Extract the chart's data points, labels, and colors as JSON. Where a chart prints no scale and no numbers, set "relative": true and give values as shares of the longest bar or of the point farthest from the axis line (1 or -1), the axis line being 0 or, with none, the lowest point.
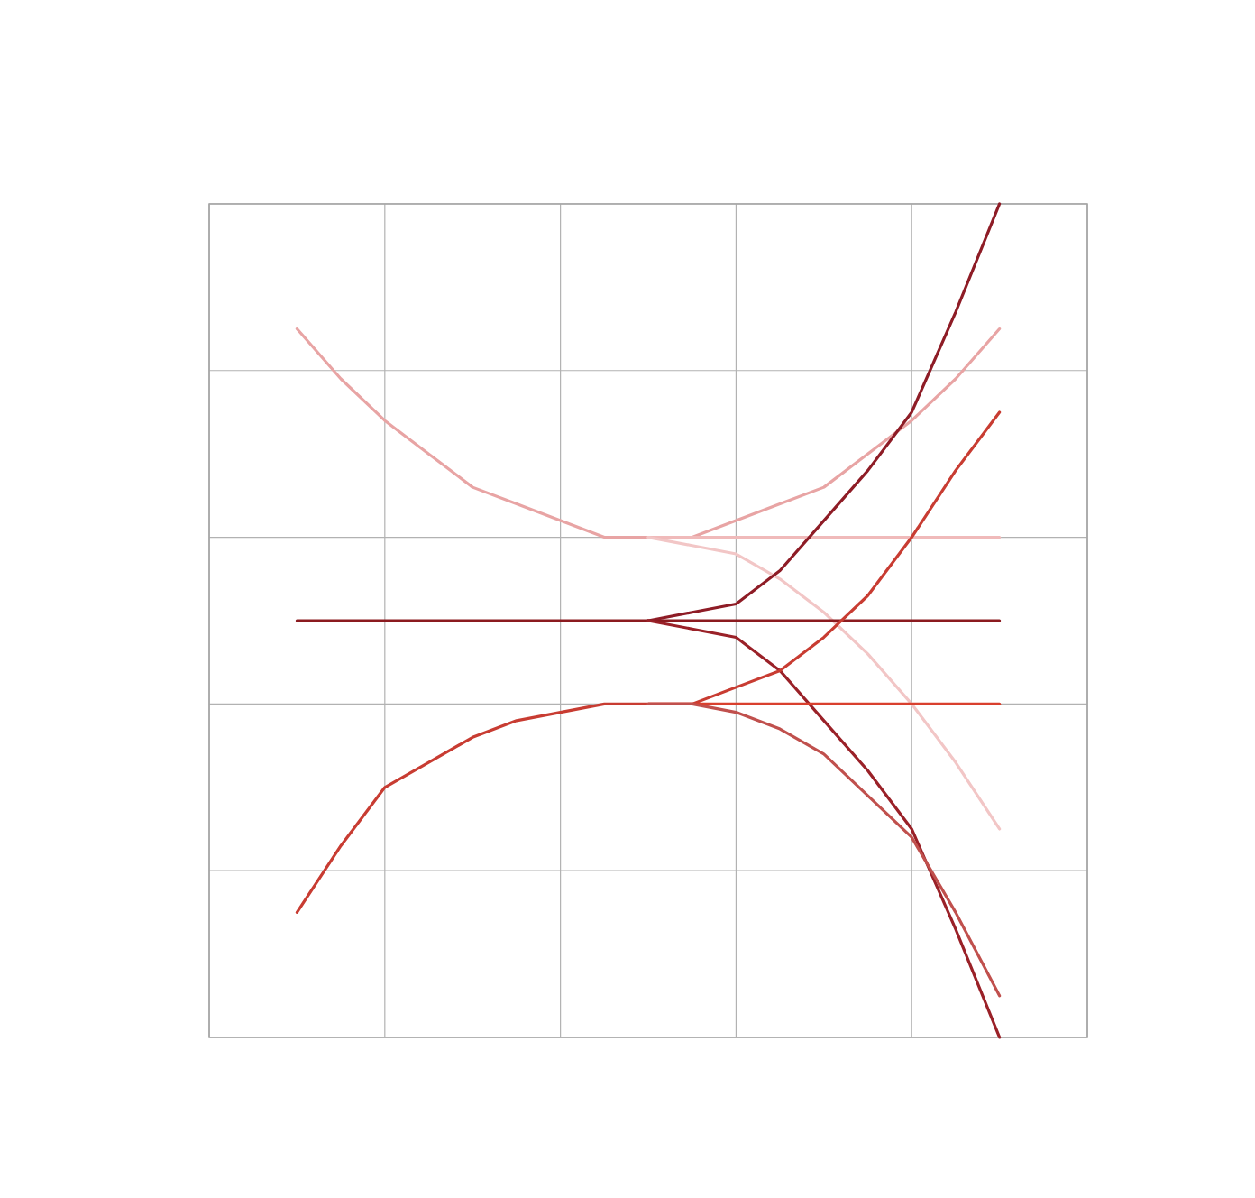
{
  "chart_data": {
    "type": "line",
    "relative": true,
    "grid": true,
    "marker": "none",
    "line_style": "solid",
    "categories": [
      null,
      null,
      null,
      null,
      null,
      null,
      null,
      null,
      null,
      null,
      null,
      null,
      null,
      null,
      null,
      null,
      null
    ],
    "series": [
      {
        "color": "#e8a4a4",
        "values": [
          0.85,
          0.79,
          0.74,
          0.7,
          0.66,
          0.64,
          0.62,
          0.6,
          0.6,
          0.6,
          0.62,
          0.64,
          0.66,
          0.7,
          0.74,
          0.79,
          0.85
        ]
      },
      {
        "color": "#f0baba",
        "values": [
          null,
          null,
          null,
          null,
          null,
          null,
          null,
          null,
          0.6,
          0.6,
          0.6,
          0.6,
          0.6,
          0.6,
          0.6,
          0.6,
          0.6
        ]
      },
      {
        "color": "#f2c6c6",
        "values": [
          null,
          null,
          null,
          null,
          null,
          null,
          null,
          null,
          0.6,
          0.59,
          0.58,
          0.55,
          0.51,
          0.46,
          0.4,
          0.33,
          0.25
        ]
      },
      {
        "color": "#8b1a1f",
        "values": [
          0.5,
          0.5,
          0.5,
          0.5,
          0.5,
          0.5,
          0.5,
          0.5,
          0.5,
          0.5,
          0.5,
          0.5,
          0.5,
          0.5,
          0.5,
          0.5,
          0.5
        ]
      },
      {
        "color": "#8e1c26",
        "values": [
          null,
          null,
          null,
          null,
          null,
          null,
          null,
          null,
          0.5,
          0.51,
          0.52,
          0.56,
          0.62,
          0.68,
          0.75,
          0.87,
          1.0
        ]
      },
      {
        "color": "#9a2128",
        "values": [
          null,
          null,
          null,
          null,
          null,
          null,
          null,
          null,
          0.5,
          0.49,
          0.48,
          0.44,
          0.38,
          0.32,
          0.25,
          0.13,
          0.0
        ]
      },
      {
        "color": "#c83c32",
        "values": [
          0.15,
          0.23,
          0.3,
          0.33,
          0.36,
          0.38,
          0.39,
          0.4,
          0.4,
          0.4,
          0.42,
          0.44,
          0.48,
          0.53,
          0.6,
          0.68,
          0.75
        ]
      },
      {
        "color": "#d9402e",
        "values": [
          null,
          null,
          null,
          null,
          null,
          null,
          null,
          null,
          0.4,
          0.4,
          0.4,
          0.4,
          0.4,
          0.4,
          0.4,
          0.4,
          0.4
        ]
      },
      {
        "color": "#c0504d",
        "values": [
          null,
          null,
          null,
          null,
          null,
          null,
          null,
          null,
          0.4,
          0.4,
          0.39,
          0.37,
          0.34,
          0.29,
          0.24,
          0.15,
          0.05
        ]
      }
    ]
  }
}
